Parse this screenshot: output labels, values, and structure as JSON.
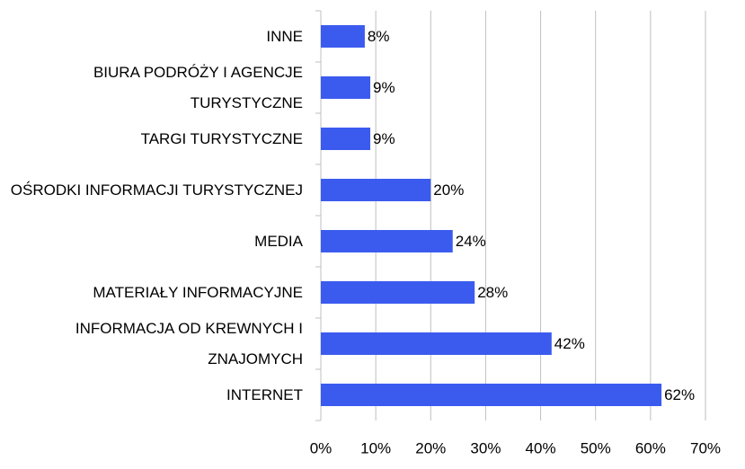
{
  "chart_data": {
    "type": "barh",
    "categories": [
      "INNE",
      "BIURA PODRÓŻY I AGENCJE TURYSTYCZNE",
      "TARGI TURYSTYCZNE",
      "OŚRODKI INFORMACJI TURYSTYCZNEJ",
      "MEDIA",
      "MATERIAŁY INFORMACYJNE",
      "INFORMACJA OD KREWNYCH I ZNAJOMYCH",
      "INTERNET"
    ],
    "values": [
      8,
      9,
      9,
      20,
      24,
      28,
      42,
      62
    ],
    "value_labels": [
      "8%",
      "9%",
      "9%",
      "20%",
      "24%",
      "28%",
      "42%",
      "62%"
    ],
    "color": "#3b5bef",
    "xlim": [
      0,
      70
    ],
    "xticks": [
      {
        "value": 0,
        "label": "0%"
      },
      {
        "value": 10,
        "label": "10%"
      },
      {
        "value": 20,
        "label": "20%"
      },
      {
        "value": 30,
        "label": "30%"
      },
      {
        "value": 40,
        "label": "40%"
      },
      {
        "value": 50,
        "label": "50%"
      },
      {
        "value": 60,
        "label": "60%"
      },
      {
        "value": 70,
        "label": "70%"
      }
    ],
    "grid": true
  }
}
